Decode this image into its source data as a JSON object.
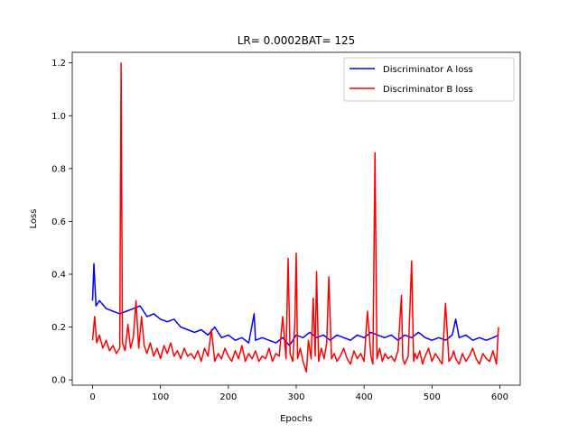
{
  "chart_data": {
    "type": "line",
    "title": "LR= 0.0002BAT= 125",
    "xlabel": "Epochs",
    "ylabel": "Loss",
    "xlim": [
      -30,
      630
    ],
    "ylim": [
      -0.02,
      1.24
    ],
    "xticks": [
      0,
      100,
      200,
      300,
      400,
      500,
      600
    ],
    "yticks": [
      0.0,
      0.2,
      0.4,
      0.6,
      0.8,
      1.0,
      1.2
    ],
    "grid": false,
    "legend": "top-right",
    "series": [
      {
        "name": "Discriminator A loss",
        "color": "#0000ff",
        "x": [
          0,
          2,
          5,
          10,
          20,
          30,
          40,
          50,
          60,
          70,
          80,
          90,
          100,
          110,
          120,
          130,
          140,
          150,
          160,
          170,
          180,
          190,
          200,
          210,
          220,
          230,
          238,
          240,
          250,
          260,
          270,
          280,
          290,
          300,
          310,
          320,
          330,
          340,
          350,
          360,
          370,
          380,
          390,
          400,
          410,
          420,
          430,
          440,
          450,
          460,
          470,
          480,
          490,
          500,
          510,
          520,
          530,
          535,
          540,
          550,
          560,
          570,
          580,
          590,
          598
        ],
        "y": [
          0.3,
          0.44,
          0.28,
          0.3,
          0.27,
          0.26,
          0.25,
          0.26,
          0.27,
          0.28,
          0.24,
          0.25,
          0.23,
          0.22,
          0.23,
          0.2,
          0.19,
          0.18,
          0.19,
          0.17,
          0.2,
          0.16,
          0.17,
          0.15,
          0.16,
          0.14,
          0.25,
          0.15,
          0.16,
          0.15,
          0.14,
          0.16,
          0.13,
          0.17,
          0.16,
          0.18,
          0.16,
          0.17,
          0.15,
          0.17,
          0.16,
          0.15,
          0.17,
          0.16,
          0.18,
          0.17,
          0.16,
          0.17,
          0.15,
          0.17,
          0.16,
          0.18,
          0.16,
          0.15,
          0.16,
          0.15,
          0.17,
          0.23,
          0.16,
          0.17,
          0.15,
          0.16,
          0.15,
          0.16,
          0.17
        ]
      },
      {
        "name": "Discriminator B loss",
        "color": "#ff0000",
        "x": [
          0,
          3,
          6,
          10,
          15,
          20,
          25,
          30,
          35,
          40,
          42,
          44,
          48,
          52,
          56,
          60,
          64,
          68,
          72,
          76,
          80,
          85,
          90,
          95,
          100,
          105,
          110,
          115,
          120,
          125,
          130,
          135,
          140,
          145,
          150,
          155,
          160,
          165,
          170,
          175,
          180,
          185,
          190,
          195,
          200,
          205,
          210,
          215,
          220,
          225,
          230,
          235,
          240,
          245,
          250,
          255,
          260,
          265,
          270,
          275,
          280,
          285,
          288,
          291,
          295,
          298,
          300,
          302,
          306,
          310,
          315,
          318,
          322,
          325,
          328,
          330,
          333,
          337,
          341,
          345,
          348,
          352,
          356,
          360,
          365,
          370,
          375,
          380,
          385,
          390,
          395,
          400,
          405,
          410,
          413,
          416,
          419,
          423,
          427,
          431,
          435,
          440,
          445,
          450,
          455,
          457,
          460,
          465,
          470,
          473,
          475,
          478,
          482,
          486,
          490,
          495,
          500,
          505,
          510,
          515,
          520,
          525,
          530,
          532,
          535,
          540,
          545,
          550,
          555,
          560,
          565,
          570,
          575,
          580,
          585,
          590,
          595,
          598
        ],
        "y": [
          0.15,
          0.24,
          0.14,
          0.17,
          0.12,
          0.15,
          0.11,
          0.13,
          0.1,
          0.12,
          1.2,
          0.14,
          0.11,
          0.21,
          0.12,
          0.16,
          0.3,
          0.12,
          0.24,
          0.13,
          0.1,
          0.14,
          0.09,
          0.12,
          0.08,
          0.13,
          0.1,
          0.14,
          0.09,
          0.11,
          0.08,
          0.12,
          0.09,
          0.1,
          0.08,
          0.11,
          0.07,
          0.12,
          0.09,
          0.19,
          0.07,
          0.1,
          0.08,
          0.12,
          0.09,
          0.07,
          0.11,
          0.08,
          0.13,
          0.07,
          0.1,
          0.08,
          0.11,
          0.07,
          0.09,
          0.08,
          0.12,
          0.07,
          0.1,
          0.09,
          0.24,
          0.08,
          0.46,
          0.1,
          0.07,
          0.22,
          0.48,
          0.08,
          0.12,
          0.07,
          0.03,
          0.15,
          0.08,
          0.31,
          0.09,
          0.41,
          0.07,
          0.12,
          0.08,
          0.14,
          0.39,
          0.08,
          0.1,
          0.07,
          0.09,
          0.12,
          0.08,
          0.06,
          0.11,
          0.08,
          0.1,
          0.07,
          0.26,
          0.09,
          0.06,
          0.86,
          0.08,
          0.12,
          0.07,
          0.1,
          0.08,
          0.09,
          0.07,
          0.11,
          0.32,
          0.08,
          0.06,
          0.09,
          0.45,
          0.07,
          0.1,
          0.08,
          0.11,
          0.06,
          0.09,
          0.12,
          0.07,
          0.1,
          0.08,
          0.06,
          0.29,
          0.07,
          0.09,
          0.11,
          0.08,
          0.06,
          0.1,
          0.07,
          0.09,
          0.12,
          0.08,
          0.06,
          0.1,
          0.08,
          0.07,
          0.11,
          0.06,
          0.2
        ]
      }
    ]
  }
}
